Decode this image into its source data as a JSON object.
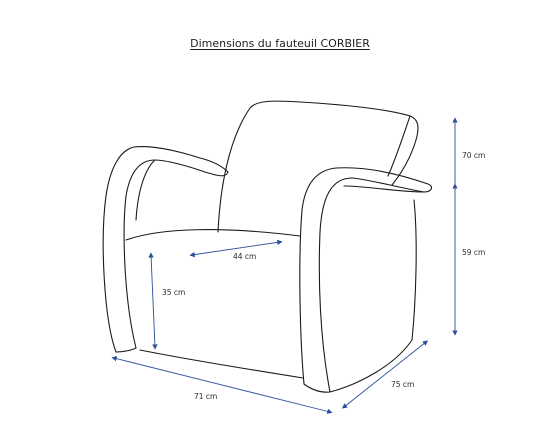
{
  "title": "Dimensions du fauteuil CORBIER",
  "colors": {
    "dimension_line": "#2c4f9a",
    "outline": "#1a1a1a",
    "background": "#ffffff"
  },
  "dimensions": {
    "seat_depth": "44 cm",
    "seat_height": "35 cm",
    "width": "71 cm",
    "depth": "75 cm",
    "back_height": "70 cm",
    "arm_height": "59 cm"
  }
}
